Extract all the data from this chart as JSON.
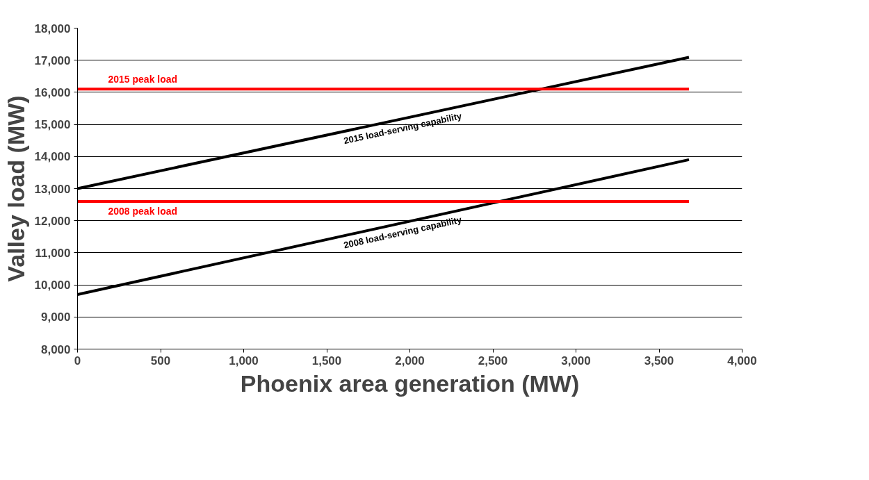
{
  "chart_data": {
    "type": "line",
    "xlabel": "Phoenix area generation (MW)",
    "ylabel": "Valley load (MW)",
    "series": [
      {
        "name": "2015 load-serving capability",
        "color": "#000000",
        "values": [
          13000,
          17090
        ]
      },
      {
        "name": "2008 load-serving capability",
        "color": "#000000",
        "values": [
          9700,
          13900
        ]
      },
      {
        "name": "2015 peak load",
        "color": "#ff0000",
        "values": [
          16100,
          16100
        ]
      },
      {
        "name": "2008 peak load",
        "color": "#ff0000",
        "values": [
          12600,
          12600
        ]
      }
    ],
    "x": [
      0,
      3680
    ],
    "xlim": [
      0,
      4000
    ],
    "xticks": [
      {
        "value": 0,
        "label": "0"
      },
      {
        "value": 500,
        "label": "500"
      },
      {
        "value": 1000,
        "label": "1,000"
      },
      {
        "value": 1500,
        "label": "1,500"
      },
      {
        "value": 2000,
        "label": "2,000"
      },
      {
        "value": 2500,
        "label": "2,500"
      },
      {
        "value": 3000,
        "label": "3,000"
      },
      {
        "value": 3500,
        "label": "3,500"
      },
      {
        "value": 4000,
        "label": "4,000"
      }
    ],
    "ylim": [
      8000,
      18000
    ],
    "yticks": [
      {
        "value": 8000,
        "label": "8,000"
      },
      {
        "value": 9000,
        "label": "9,000"
      },
      {
        "value": 10000,
        "label": "10,000"
      },
      {
        "value": 11000,
        "label": "11,000"
      },
      {
        "value": 12000,
        "label": "12,000"
      },
      {
        "value": 13000,
        "label": "13,000"
      },
      {
        "value": 14000,
        "label": "14,000"
      },
      {
        "value": 15000,
        "label": "15,000"
      },
      {
        "value": 16000,
        "label": "16,000"
      },
      {
        "value": 17000,
        "label": "17,000"
      },
      {
        "value": 18000,
        "label": "18,000"
      }
    ],
    "grid": "y",
    "legend": false,
    "marker": "none",
    "line_style": "solid"
  }
}
